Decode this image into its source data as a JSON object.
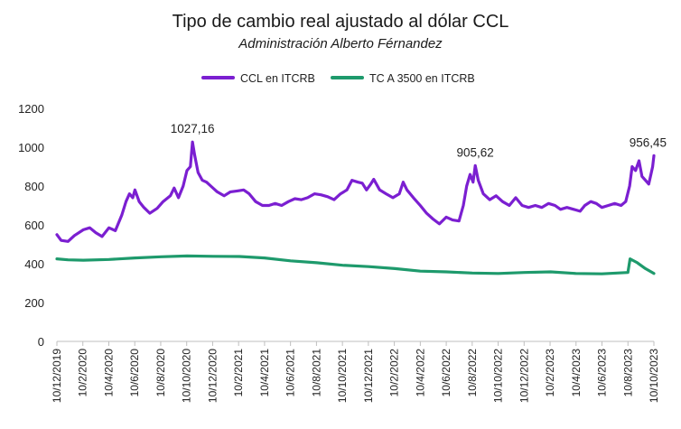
{
  "chart_data": {
    "type": "line",
    "title": "Tipo de cambio real ajustado al dólar CCL",
    "subtitle": "Administración Alberto Férnandez",
    "ylim": [
      0,
      1200
    ],
    "yticks": [
      "0",
      "200",
      "400",
      "600",
      "800",
      "1000",
      "1200"
    ],
    "xlim": [
      "2019-12-10",
      "2023-10-10"
    ],
    "xtick_labels": [
      "10/12/2019",
      "10/2/2020",
      "10/4/2020",
      "10/6/2020",
      "10/8/2020",
      "10/10/2020",
      "10/12/2020",
      "10/2/2021",
      "10/4/2021",
      "10/6/2021",
      "10/8/2021",
      "10/10/2021",
      "10/12/2021",
      "10/2/2022",
      "10/4/2022",
      "10/6/2022",
      "10/8/2022",
      "10/10/2022",
      "10/12/2022",
      "10/2/2023",
      "10/4/2023",
      "10/6/2023",
      "10/8/2023",
      "10/10/2023"
    ],
    "legend_position": "top-center",
    "grid": false,
    "series": [
      {
        "name": "CCL en ITCRB",
        "color": "#7B1FD1",
        "points": [
          [
            "2019-12-10",
            550
          ],
          [
            "2019-12-20",
            520
          ],
          [
            "2020-01-05",
            515
          ],
          [
            "2020-01-20",
            545
          ],
          [
            "2020-02-10",
            575
          ],
          [
            "2020-02-25",
            585
          ],
          [
            "2020-03-10",
            560
          ],
          [
            "2020-03-25",
            540
          ],
          [
            "2020-04-10",
            585
          ],
          [
            "2020-04-25",
            570
          ],
          [
            "2020-05-10",
            650
          ],
          [
            "2020-05-20",
            720
          ],
          [
            "2020-05-28",
            760
          ],
          [
            "2020-06-05",
            740
          ],
          [
            "2020-06-10",
            780
          ],
          [
            "2020-06-20",
            720
          ],
          [
            "2020-07-01",
            690
          ],
          [
            "2020-07-15",
            660
          ],
          [
            "2020-08-01",
            685
          ],
          [
            "2020-08-15",
            720
          ],
          [
            "2020-09-01",
            750
          ],
          [
            "2020-09-10",
            790
          ],
          [
            "2020-09-20",
            740
          ],
          [
            "2020-10-01",
            800
          ],
          [
            "2020-10-10",
            880
          ],
          [
            "2020-10-18",
            900
          ],
          [
            "2020-10-23",
            1027.16
          ],
          [
            "2020-10-28",
            960
          ],
          [
            "2020-11-05",
            870
          ],
          [
            "2020-11-15",
            830
          ],
          [
            "2020-11-25",
            820
          ],
          [
            "2020-12-05",
            800
          ],
          [
            "2020-12-20",
            770
          ],
          [
            "2021-01-05",
            750
          ],
          [
            "2021-01-20",
            770
          ],
          [
            "2021-02-05",
            775
          ],
          [
            "2021-02-20",
            780
          ],
          [
            "2021-03-05",
            760
          ],
          [
            "2021-03-20",
            720
          ],
          [
            "2021-04-05",
            700
          ],
          [
            "2021-04-20",
            700
          ],
          [
            "2021-05-05",
            710
          ],
          [
            "2021-05-20",
            700
          ],
          [
            "2021-06-05",
            720
          ],
          [
            "2021-06-20",
            735
          ],
          [
            "2021-07-05",
            730
          ],
          [
            "2021-07-20",
            740
          ],
          [
            "2021-08-05",
            760
          ],
          [
            "2021-08-20",
            755
          ],
          [
            "2021-09-05",
            745
          ],
          [
            "2021-09-20",
            730
          ],
          [
            "2021-10-05",
            760
          ],
          [
            "2021-10-20",
            780
          ],
          [
            "2021-11-01",
            830
          ],
          [
            "2021-11-15",
            820
          ],
          [
            "2021-11-25",
            815
          ],
          [
            "2021-12-05",
            780
          ],
          [
            "2021-12-15",
            810
          ],
          [
            "2021-12-22",
            835
          ],
          [
            "2022-01-05",
            780
          ],
          [
            "2022-01-20",
            760
          ],
          [
            "2022-02-05",
            740
          ],
          [
            "2022-02-20",
            760
          ],
          [
            "2022-03-01",
            820
          ],
          [
            "2022-03-10",
            780
          ],
          [
            "2022-03-25",
            740
          ],
          [
            "2022-04-10",
            700
          ],
          [
            "2022-04-25",
            660
          ],
          [
            "2022-05-10",
            630
          ],
          [
            "2022-05-25",
            605
          ],
          [
            "2022-06-10",
            640
          ],
          [
            "2022-06-25",
            625
          ],
          [
            "2022-07-10",
            620
          ],
          [
            "2022-07-20",
            700
          ],
          [
            "2022-07-28",
            800
          ],
          [
            "2022-08-05",
            860
          ],
          [
            "2022-08-12",
            820
          ],
          [
            "2022-08-17",
            905.62
          ],
          [
            "2022-08-24",
            830
          ],
          [
            "2022-09-05",
            760
          ],
          [
            "2022-09-20",
            730
          ],
          [
            "2022-10-05",
            750
          ],
          [
            "2022-10-20",
            720
          ],
          [
            "2022-11-05",
            700
          ],
          [
            "2022-11-20",
            740
          ],
          [
            "2022-12-05",
            700
          ],
          [
            "2022-12-20",
            690
          ],
          [
            "2023-01-05",
            700
          ],
          [
            "2023-01-20",
            690
          ],
          [
            "2023-02-05",
            710
          ],
          [
            "2023-02-20",
            700
          ],
          [
            "2023-03-05",
            680
          ],
          [
            "2023-03-20",
            690
          ],
          [
            "2023-04-05",
            680
          ],
          [
            "2023-04-20",
            670
          ],
          [
            "2023-05-01",
            700
          ],
          [
            "2023-05-15",
            720
          ],
          [
            "2023-05-28",
            710
          ],
          [
            "2023-06-10",
            690
          ],
          [
            "2023-06-25",
            700
          ],
          [
            "2023-07-10",
            710
          ],
          [
            "2023-07-25",
            700
          ],
          [
            "2023-08-05",
            720
          ],
          [
            "2023-08-14",
            800
          ],
          [
            "2023-08-20",
            900
          ],
          [
            "2023-08-28",
            880
          ],
          [
            "2023-09-05",
            930
          ],
          [
            "2023-09-12",
            850
          ],
          [
            "2023-09-20",
            830
          ],
          [
            "2023-09-28",
            810
          ],
          [
            "2023-10-03",
            860
          ],
          [
            "2023-10-07",
            900
          ],
          [
            "2023-10-10",
            956.45
          ]
        ]
      },
      {
        "name": "TC A 3500 en ITCRB",
        "color": "#1E9A6C",
        "points": [
          [
            "2019-12-10",
            425
          ],
          [
            "2020-01-05",
            420
          ],
          [
            "2020-02-10",
            418
          ],
          [
            "2020-04-10",
            422
          ],
          [
            "2020-06-10",
            430
          ],
          [
            "2020-08-10",
            436
          ],
          [
            "2020-10-10",
            440
          ],
          [
            "2020-12-10",
            438
          ],
          [
            "2021-02-10",
            437
          ],
          [
            "2021-04-10",
            430
          ],
          [
            "2021-06-10",
            415
          ],
          [
            "2021-08-10",
            405
          ],
          [
            "2021-10-10",
            392
          ],
          [
            "2021-12-10",
            385
          ],
          [
            "2022-02-10",
            375
          ],
          [
            "2022-04-10",
            362
          ],
          [
            "2022-06-10",
            358
          ],
          [
            "2022-08-10",
            352
          ],
          [
            "2022-10-10",
            350
          ],
          [
            "2022-12-10",
            355
          ],
          [
            "2023-02-10",
            358
          ],
          [
            "2023-04-10",
            350
          ],
          [
            "2023-06-10",
            348
          ],
          [
            "2023-08-10",
            355
          ],
          [
            "2023-08-15",
            425
          ],
          [
            "2023-09-01",
            405
          ],
          [
            "2023-09-20",
            375
          ],
          [
            "2023-10-10",
            350
          ]
        ]
      }
    ],
    "annotations": [
      {
        "text": "1027,16",
        "x": "2020-10-23",
        "y": 1027.16
      },
      {
        "text": "905,62",
        "x": "2022-08-17",
        "y": 905.62
      },
      {
        "text": "956,45",
        "x": "2023-10-10",
        "y": 956.45
      }
    ]
  }
}
